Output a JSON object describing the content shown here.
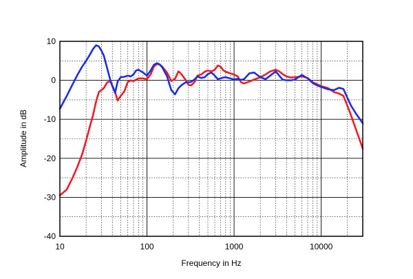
{
  "chart_data": {
    "type": "line",
    "xscale": "log",
    "xlim": [
      10,
      30000
    ],
    "ylim": [
      -40,
      10
    ],
    "xlabel": "Frequency in Hz",
    "ylabel": "Amplitude in dB",
    "xticks": [
      10,
      100,
      1000,
      10000
    ],
    "xtick_labels": [
      "10",
      "100",
      "1000",
      "10000"
    ],
    "yticks": [
      10,
      0,
      -10,
      -20,
      -30,
      -40
    ],
    "ytick_labels": [
      "10",
      "0",
      "-10",
      "-20",
      "-30",
      "-40"
    ],
    "grid": "major solid, minor dotted",
    "series": [
      {
        "color": "#ee1c25",
        "x": [
          10,
          12,
          14,
          16,
          18,
          20,
          22,
          24,
          26,
          28,
          30,
          32,
          35,
          38,
          40,
          43,
          46,
          50,
          55,
          60,
          65,
          70,
          80,
          90,
          100,
          110,
          120,
          130,
          140,
          150,
          170,
          190,
          210,
          230,
          250,
          280,
          300,
          320,
          350,
          380,
          420,
          460,
          500,
          550,
          600,
          650,
          700,
          750,
          800,
          900,
          1000,
          1100,
          1200,
          1300,
          1500,
          1700,
          2000,
          2300,
          2600,
          3000,
          3300,
          3600,
          4000,
          4500,
          5000,
          6000,
          7000,
          8000,
          9000,
          10000,
          12000,
          14000,
          16000,
          18000,
          20000,
          22000,
          25000,
          30000
        ],
        "y": [
          -29.5,
          -28,
          -25,
          -22,
          -19,
          -15.5,
          -12,
          -9,
          -5.5,
          -3,
          -2.5,
          -2,
          -0.5,
          -0.3,
          -1.3,
          -3,
          -5.2,
          -4,
          -2.8,
          -0.5,
          0,
          -0.2,
          0.5,
          0.5,
          0.3,
          1.5,
          3.5,
          4.2,
          4,
          3.5,
          2,
          -0.2,
          0.4,
          2.3,
          1.5,
          0,
          -1.2,
          -1.3,
          -0.5,
          1.2,
          1.5,
          2.2,
          2.5,
          2.3,
          2.7,
          3.8,
          3.5,
          2.6,
          2.2,
          1.8,
          1.5,
          1,
          -0.5,
          -0.8,
          -0.3,
          0.2,
          0.8,
          1.5,
          2.3,
          2.7,
          2.3,
          1.6,
          1,
          0.7,
          0.8,
          1,
          0.6,
          -0.5,
          -1,
          -1.5,
          -2,
          -3,
          -3.4,
          -4,
          -6.5,
          -9,
          -12.5,
          -17.5
        ]
      },
      {
        "color": "#1b2ee6",
        "x": [
          10,
          12,
          14,
          16,
          18,
          20,
          22,
          24,
          26,
          28,
          30,
          32,
          35,
          38,
          40,
          43,
          46,
          50,
          55,
          60,
          65,
          70,
          75,
          80,
          90,
          100,
          110,
          120,
          130,
          140,
          150,
          170,
          190,
          210,
          230,
          250,
          280,
          300,
          320,
          350,
          380,
          420,
          460,
          500,
          550,
          600,
          650,
          700,
          750,
          800,
          900,
          1000,
          1100,
          1200,
          1300,
          1500,
          1700,
          2000,
          2300,
          2600,
          3000,
          3300,
          3600,
          4000,
          4500,
          5000,
          6000,
          7000,
          8000,
          9000,
          10000,
          12000,
          14000,
          16000,
          18000,
          20000,
          22000,
          25000,
          30000
        ],
        "y": [
          -7.3,
          -4,
          -1,
          1.5,
          3.5,
          5,
          6.5,
          8,
          9,
          8.7,
          7.6,
          6.3,
          3,
          0,
          -1.5,
          -3.2,
          -0.3,
          0.8,
          0.9,
          1.2,
          1,
          1.5,
          2.5,
          2.7,
          2,
          1.2,
          2.5,
          4,
          4.4,
          4.1,
          3.3,
          1,
          -2.5,
          -3.6,
          -2,
          -1.2,
          -0.5,
          -0.5,
          -0.4,
          0.2,
          1,
          0.6,
          0.8,
          1.6,
          2,
          1.2,
          0.3,
          0.5,
          0.7,
          0.8,
          0.5,
          0.2,
          0.4,
          0.1,
          0.3,
          1.8,
          2,
          0.8,
          0.3,
          1.2,
          2.3,
          1.2,
          0.2,
          0,
          0,
          0.2,
          1.4,
          0.5,
          -0.7,
          -1.3,
          -1.7,
          -2.3,
          -2.5,
          -1.9,
          -2.2,
          -4.5,
          -6.5,
          -8.5,
          -11
        ]
      }
    ]
  }
}
